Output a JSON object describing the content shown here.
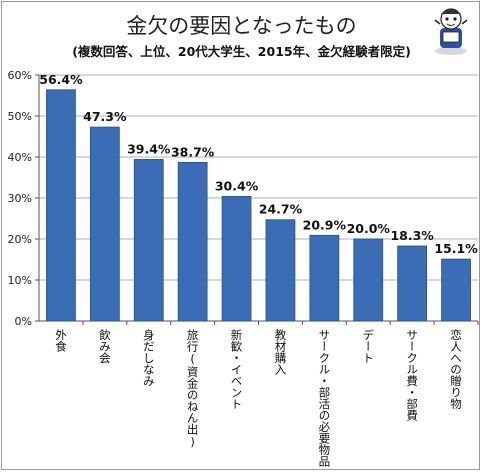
{
  "header": {
    "title": "金欠の要因となったもの",
    "subtitle": "(複数回答、上位、20代大学生、2015年、金欠経験者限定)"
  },
  "colors": {
    "bar": "#3a6db5",
    "bar_edge": "#2a4f86",
    "grid": "#b0b0b0"
  },
  "chart_data": {
    "type": "bar",
    "categories": [
      "外食",
      "飲み会",
      "身だしなみ",
      "旅行(資金のねん出)",
      "新歓・イベント",
      "教材購入",
      "サークル・部活の必要物品",
      "デート",
      "サークル費・部費",
      "恋人への贈り物"
    ],
    "values": [
      56.4,
      47.3,
      39.4,
      38.7,
      30.4,
      24.7,
      20.9,
      20.0,
      18.3,
      15.1
    ],
    "value_labels": [
      "56.4%",
      "47.3%",
      "39.4%",
      "38.7%",
      "30.4%",
      "24.7%",
      "20.9%",
      "20.0%",
      "18.3%",
      "15.1%"
    ],
    "yticks": [
      0,
      10,
      20,
      30,
      40,
      50,
      60
    ],
    "ytick_labels": [
      "0%",
      "10%",
      "20%",
      "30%",
      "40%",
      "50%",
      "60%"
    ],
    "ylim": [
      0,
      60
    ],
    "grid": true,
    "xlabel": "",
    "ylabel": ""
  }
}
